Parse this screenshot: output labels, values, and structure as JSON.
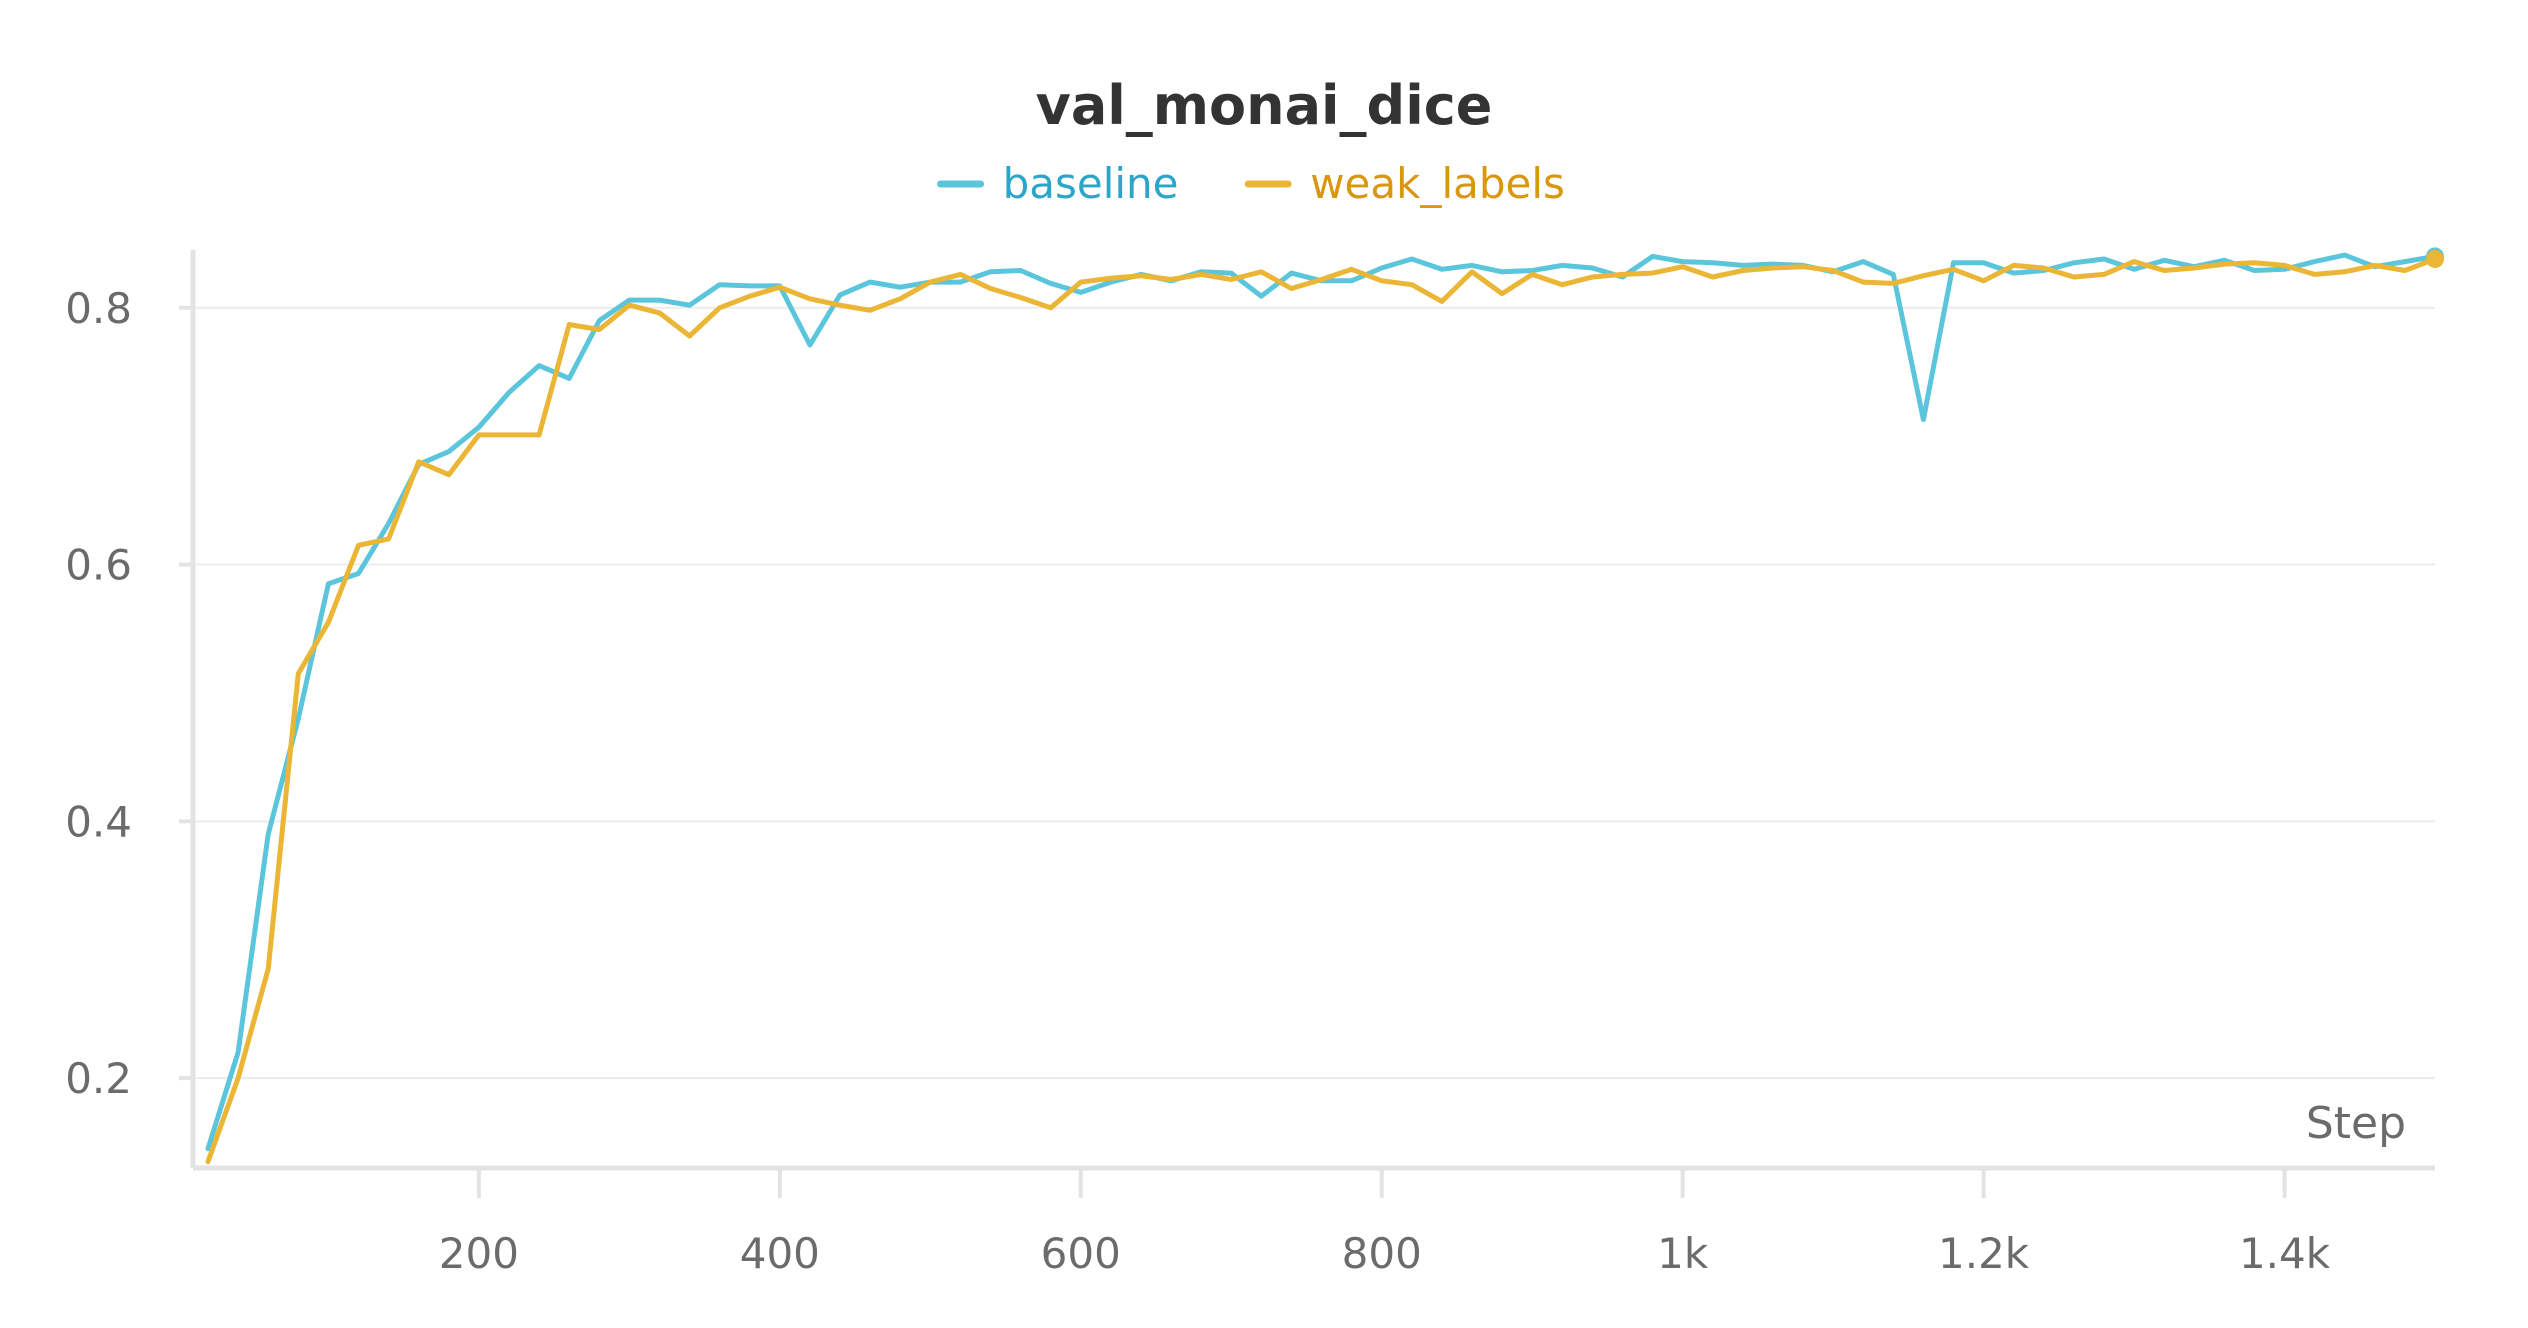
{
  "chart_data": {
    "type": "line",
    "title": "val_monai_dice",
    "xlabel": "Step",
    "ylabel": "",
    "xlim": [
      10,
      1500
    ],
    "ylim": [
      0.13,
      0.845
    ],
    "x_ticks": [
      200,
      400,
      600,
      800,
      1000,
      1200,
      1400
    ],
    "x_tick_labels": [
      "200",
      "400",
      "600",
      "800",
      "1k",
      "1.2k",
      "1.4k"
    ],
    "y_ticks": [
      0.2,
      0.4,
      0.6,
      0.8
    ],
    "y_tick_labels": [
      "0.2",
      "0.4",
      "0.6",
      "0.8"
    ],
    "grid": true,
    "legend_position": "top-center",
    "series": [
      {
        "name": "baseline",
        "color": "#5bc5db",
        "x": [
          20,
          40,
          60,
          80,
          100,
          120,
          140,
          160,
          180,
          200,
          220,
          240,
          260,
          280,
          300,
          320,
          340,
          360,
          380,
          400,
          420,
          440,
          460,
          480,
          500,
          520,
          540,
          560,
          580,
          600,
          620,
          640,
          660,
          680,
          700,
          720,
          740,
          760,
          780,
          800,
          820,
          840,
          860,
          880,
          900,
          920,
          940,
          960,
          980,
          1000,
          1020,
          1040,
          1060,
          1080,
          1100,
          1120,
          1140,
          1160,
          1180,
          1200,
          1220,
          1240,
          1260,
          1280,
          1300,
          1320,
          1340,
          1360,
          1380,
          1400,
          1420,
          1440,
          1460,
          1480,
          1500
        ],
        "y": [
          0.145,
          0.22,
          0.39,
          0.48,
          0.585,
          0.593,
          0.632,
          0.678,
          0.688,
          0.707,
          0.734,
          0.755,
          0.745,
          0.79,
          0.806,
          0.806,
          0.802,
          0.818,
          0.817,
          0.817,
          0.771,
          0.81,
          0.82,
          0.816,
          0.82,
          0.82,
          0.828,
          0.829,
          0.819,
          0.812,
          0.82,
          0.826,
          0.821,
          0.828,
          0.827,
          0.809,
          0.827,
          0.821,
          0.821,
          0.831,
          0.838,
          0.83,
          0.833,
          0.828,
          0.829,
          0.833,
          0.831,
          0.824,
          0.84,
          0.836,
          0.835,
          0.833,
          0.834,
          0.833,
          0.828,
          0.836,
          0.826,
          0.713,
          0.835,
          0.835,
          0.827,
          0.829,
          0.835,
          0.838,
          0.83,
          0.837,
          0.832,
          0.837,
          0.829,
          0.83,
          0.836,
          0.841,
          0.832,
          0.836,
          0.84
        ]
      },
      {
        "name": "weak_labels",
        "color": "#ebb535",
        "x": [
          20,
          40,
          60,
          80,
          100,
          120,
          140,
          160,
          180,
          200,
          220,
          240,
          260,
          280,
          300,
          320,
          340,
          360,
          380,
          400,
          420,
          440,
          460,
          480,
          500,
          520,
          540,
          560,
          580,
          600,
          620,
          640,
          660,
          680,
          700,
          720,
          740,
          760,
          780,
          800,
          820,
          840,
          860,
          880,
          900,
          920,
          940,
          960,
          980,
          1000,
          1020,
          1040,
          1060,
          1080,
          1100,
          1120,
          1140,
          1160,
          1180,
          1200,
          1220,
          1240,
          1260,
          1280,
          1300,
          1320,
          1340,
          1360,
          1380,
          1400,
          1420,
          1440,
          1460,
          1480,
          1500
        ],
        "y": [
          0.135,
          0.2,
          0.285,
          0.515,
          0.555,
          0.615,
          0.62,
          0.68,
          0.67,
          0.701,
          0.701,
          0.701,
          0.787,
          0.783,
          0.802,
          0.796,
          0.778,
          0.8,
          0.809,
          0.816,
          0.807,
          0.802,
          0.798,
          0.807,
          0.82,
          0.826,
          0.815,
          0.808,
          0.8,
          0.82,
          0.823,
          0.825,
          0.822,
          0.826,
          0.822,
          0.828,
          0.815,
          0.822,
          0.83,
          0.821,
          0.818,
          0.805,
          0.828,
          0.811,
          0.826,
          0.818,
          0.824,
          0.826,
          0.827,
          0.832,
          0.824,
          0.829,
          0.831,
          0.832,
          0.829,
          0.82,
          0.819,
          0.825,
          0.83,
          0.821,
          0.833,
          0.831,
          0.824,
          0.826,
          0.836,
          0.829,
          0.831,
          0.834,
          0.835,
          0.833,
          0.826,
          0.828,
          0.833,
          0.829,
          0.838
        ]
      }
    ]
  }
}
